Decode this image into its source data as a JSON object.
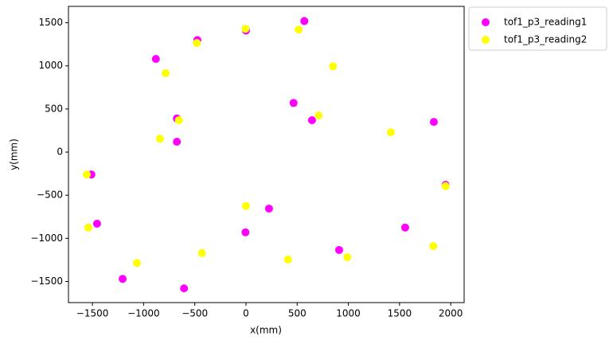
{
  "chart_data": {
    "type": "scatter",
    "xlabel": "x(mm)",
    "ylabel": "y(mm)",
    "xlim": [
      -1734,
      2131
    ],
    "ylim": [
      -1745,
      1690
    ],
    "xticks": [
      {
        "value": -1500,
        "label": "−1500"
      },
      {
        "value": -1000,
        "label": "−1000"
      },
      {
        "value": -500,
        "label": "−500"
      },
      0,
      500,
      1000,
      1500,
      2000
    ],
    "yticks": [
      {
        "value": -1500,
        "label": "−1500"
      },
      {
        "value": -1000,
        "label": "−1000"
      },
      {
        "value": -500,
        "label": "−500"
      },
      0,
      500,
      1000,
      1500
    ],
    "legend": "outside-upper-right",
    "series": [
      {
        "name": "tof1_p3_reading1",
        "color": "#ff00ff",
        "x": [
          570,
          -475,
          0,
          -880,
          465,
          -675,
          645,
          1835,
          -675,
          -1510,
          1950,
          225,
          -1455,
          1555,
          -5,
          910,
          -1205,
          -605
        ],
        "values": [
          1520,
          1300,
          1410,
          1080,
          570,
          390,
          370,
          350,
          120,
          -260,
          -380,
          -655,
          -830,
          -875,
          -930,
          -1135,
          -1470,
          -1580
        ]
      },
      {
        "name": "tof1_p3_reading2",
        "color": "#ffff00",
        "x": [
          -5,
          515,
          -480,
          850,
          -785,
          710,
          -655,
          -840,
          1415,
          -1555,
          1950,
          0,
          -1540,
          -430,
          1830,
          -1065,
          410,
          990
        ],
        "values": [
          1430,
          1420,
          1265,
          995,
          915,
          425,
          370,
          155,
          230,
          -260,
          -395,
          -625,
          -875,
          -1170,
          -1090,
          -1285,
          -1245,
          -1220
        ]
      }
    ]
  }
}
